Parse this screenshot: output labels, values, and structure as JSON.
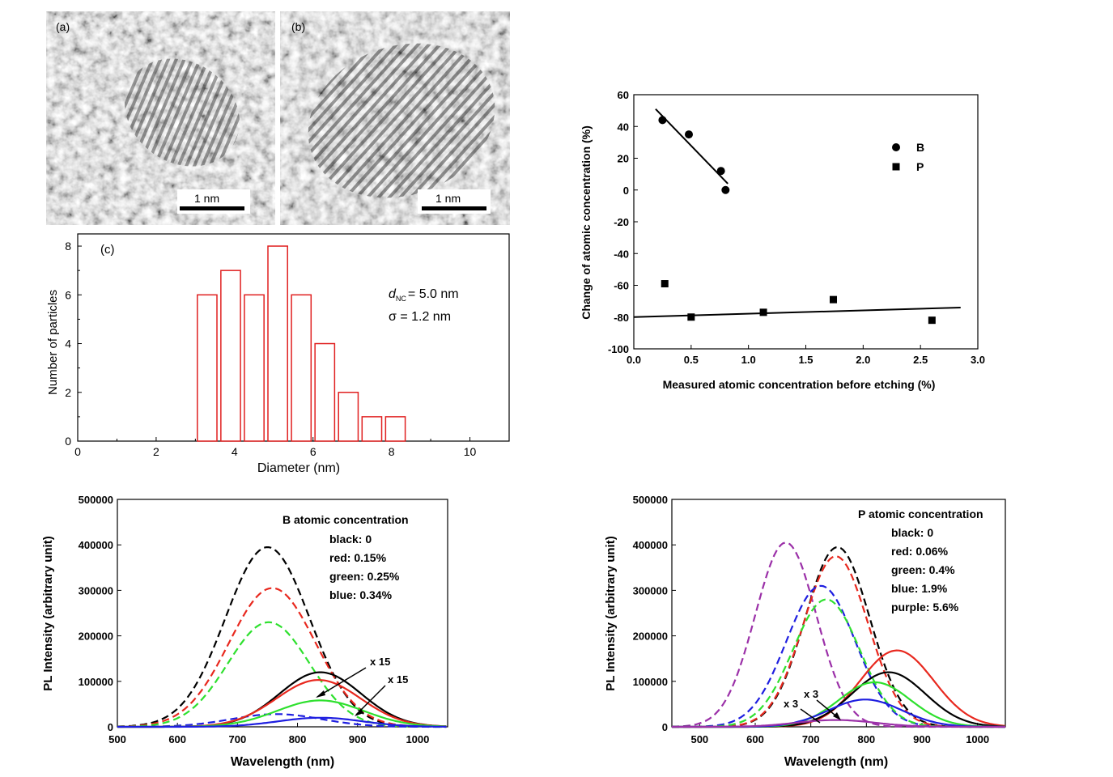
{
  "tem": {
    "a": {
      "label": "(a)",
      "scale": "1 nm"
    },
    "b": {
      "label": "(b)",
      "scale": "1 nm"
    }
  },
  "chart_data": [
    {
      "id": "hist",
      "type": "bar",
      "panel_label": "(c)",
      "xlabel": "Diameter (nm)",
      "ylabel": "Number of particles",
      "xlim": [
        0,
        11
      ],
      "ylim": [
        0,
        8.5
      ],
      "xticks": [
        0,
        2,
        4,
        6,
        8,
        10
      ],
      "yticks": [
        0,
        2,
        4,
        6,
        8
      ],
      "bin_width": 0.5,
      "bin_starts": [
        3.05,
        3.65,
        4.25,
        4.85,
        5.45,
        6.05,
        6.65,
        7.25,
        7.85
      ],
      "values": [
        6,
        7,
        6,
        8,
        6,
        4,
        2,
        1,
        1
      ],
      "annotation_d_symbol": "d",
      "annotation_d_sub": "NC",
      "annotation_d_value": "= 5.0 nm",
      "annotation_sigma": "σ = 1.2 nm",
      "color": "#e02020"
    },
    {
      "id": "scatter",
      "type": "scatter",
      "xlabel": "Measured atomic concentration before etching (%)",
      "ylabel": "Change of atomic concentration (%)",
      "xlim": [
        0,
        3.0
      ],
      "ylim": [
        -100,
        60
      ],
      "xticks": [
        "0.0",
        "0.5",
        "1.0",
        "1.5",
        "2.0",
        "2.5",
        "3.0"
      ],
      "yticks": [
        "-100",
        "-80",
        "-60",
        "-40",
        "-20",
        "0",
        "20",
        "40",
        "60"
      ],
      "series": [
        {
          "name": "B",
          "marker": "circle",
          "x": [
            0.25,
            0.48,
            0.76,
            0.8
          ],
          "y": [
            44,
            35,
            12,
            0
          ],
          "fit": [
            [
              0.19,
              51
            ],
            [
              0.82,
              4
            ]
          ]
        },
        {
          "name": "P",
          "marker": "square",
          "x": [
            0.27,
            0.5,
            1.13,
            1.74,
            2.6
          ],
          "y": [
            -59,
            -80,
            -77,
            -69,
            -82
          ],
          "fit": [
            [
              0,
              -80
            ],
            [
              2.85,
              -74
            ]
          ]
        }
      ]
    },
    {
      "id": "pl_b",
      "type": "line",
      "xlabel": "Wavelength (nm)",
      "ylabel": "PL Intensity (arbitrary unit)",
      "xlim": [
        500,
        1050
      ],
      "ylim": [
        0,
        500000
      ],
      "xticks": [
        "500",
        "600",
        "700",
        "800",
        "900",
        "1000"
      ],
      "yticks": [
        "0",
        "100000",
        "200000",
        "300000",
        "400000",
        "500000"
      ],
      "legend_title": "B atomic concentration",
      "legend": [
        "black: 0",
        "red: 0.15%",
        "green: 0.25%",
        "blue: 0.34%"
      ],
      "annotations": [
        "x 15",
        "x 15"
      ],
      "series": [
        {
          "color": "#000000",
          "style": "dashed",
          "peak": 750,
          "amp": 395000,
          "width": 70
        },
        {
          "color": "#e8281e",
          "style": "dashed",
          "peak": 758,
          "amp": 305000,
          "width": 72
        },
        {
          "color": "#2ee02e",
          "style": "dashed",
          "peak": 752,
          "amp": 230000,
          "width": 68
        },
        {
          "color": "#1e1ee0",
          "style": "dashed",
          "peak": 765,
          "amp": 28000,
          "width": 75
        },
        {
          "color": "#000000",
          "style": "solid",
          "peak": 838,
          "amp": 120000,
          "width": 68
        },
        {
          "color": "#e8281e",
          "style": "solid",
          "peak": 835,
          "amp": 103000,
          "width": 70
        },
        {
          "color": "#2ee02e",
          "style": "solid",
          "peak": 838,
          "amp": 58000,
          "width": 72
        },
        {
          "color": "#1e1ee0",
          "style": "solid",
          "peak": 838,
          "amp": 20000,
          "width": 70
        }
      ]
    },
    {
      "id": "pl_p",
      "type": "line",
      "xlabel": "Wavelength (nm)",
      "ylabel": "PL Intensity (arbitrary unit)",
      "xlim": [
        450,
        1050
      ],
      "ylim": [
        0,
        500000
      ],
      "xticks": [
        "500",
        "600",
        "700",
        "800",
        "900",
        "1000"
      ],
      "yticks": [
        "0",
        "100000",
        "200000",
        "300000",
        "400000",
        "500000"
      ],
      "legend_title": "P atomic concentration",
      "legend": [
        "black: 0",
        "red: 0.06%",
        "green: 0.4%",
        "blue: 1.9%",
        "purple: 5.6%"
      ],
      "annotations": [
        "x 3",
        "x 3"
      ],
      "series": [
        {
          "color": "#9b30a8",
          "style": "dashed",
          "peak": 655,
          "amp": 405000,
          "width": 55
        },
        {
          "color": "#000000",
          "style": "dashed",
          "peak": 748,
          "amp": 395000,
          "width": 58
        },
        {
          "color": "#e8281e",
          "style": "dashed",
          "peak": 745,
          "amp": 375000,
          "width": 58
        },
        {
          "color": "#1e1ee0",
          "style": "dashed",
          "peak": 718,
          "amp": 310000,
          "width": 62
        },
        {
          "color": "#2ee02e",
          "style": "dashed",
          "peak": 728,
          "amp": 280000,
          "width": 60
        },
        {
          "color": "#e8281e",
          "style": "solid",
          "peak": 855,
          "amp": 168000,
          "width": 66
        },
        {
          "color": "#000000",
          "style": "solid",
          "peak": 840,
          "amp": 120000,
          "width": 66
        },
        {
          "color": "#2ee02e",
          "style": "solid",
          "peak": 815,
          "amp": 98000,
          "width": 64
        },
        {
          "color": "#1e1ee0",
          "style": "solid",
          "peak": 798,
          "amp": 60000,
          "width": 66
        },
        {
          "color": "#9b30a8",
          "style": "solid",
          "peak": 745,
          "amp": 15000,
          "width": 70
        }
      ]
    }
  ]
}
